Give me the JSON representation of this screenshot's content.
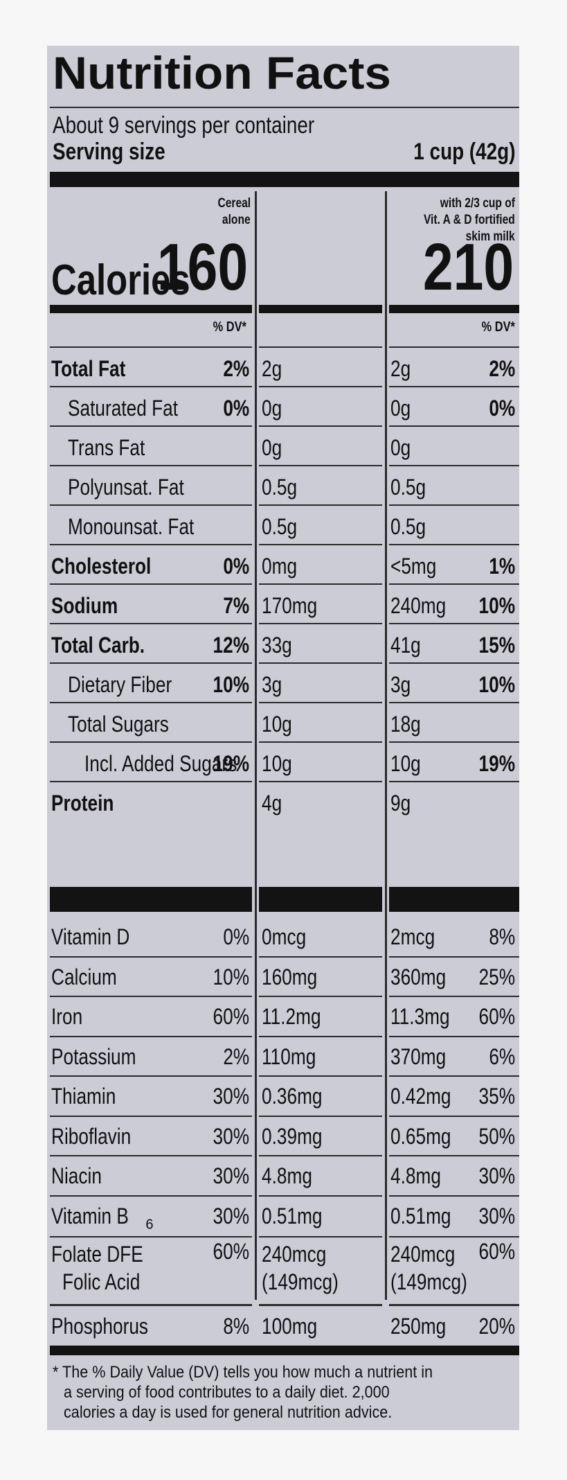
{
  "title": "Nutrition Facts",
  "servings": "About 9 servings per container",
  "serving_size_label": "Serving size",
  "serving_size_value": "1 cup (42g)",
  "col_cereal_header": [
    "Cereal",
    "alone"
  ],
  "col_milk_header": [
    "with 2/3 cup of",
    "Vit. A & D fortified",
    "skim milk"
  ],
  "calories_label": "Calories",
  "calories_cereal": "160",
  "calories_milk": "210",
  "dv_header": "% DV*",
  "nutrients": [
    {
      "label": "Total Fat",
      "bold": true,
      "indent": 0,
      "c_amt": "2g",
      "c_dv": "2%",
      "m_amt": "2g",
      "m_dv": "2%"
    },
    {
      "label": "Saturated Fat",
      "bold": false,
      "indent": 1,
      "c_amt": "0g",
      "c_dv": "0%",
      "m_amt": "0g",
      "m_dv": "0%"
    },
    {
      "label": "Trans Fat",
      "bold": false,
      "indent": 1,
      "c_amt": "0g",
      "c_dv": "",
      "m_amt": "0g",
      "m_dv": ""
    },
    {
      "label": "Polyunsat. Fat",
      "bold": false,
      "indent": 1,
      "c_amt": "0.5g",
      "c_dv": "",
      "m_amt": "0.5g",
      "m_dv": ""
    },
    {
      "label": "Monounsat. Fat",
      "bold": false,
      "indent": 1,
      "c_amt": "0.5g",
      "c_dv": "",
      "m_amt": "0.5g",
      "m_dv": ""
    },
    {
      "label": "Cholesterol",
      "bold": true,
      "indent": 0,
      "c_amt": "0mg",
      "c_dv": "0%",
      "m_amt": "<5mg",
      "m_dv": "1%"
    },
    {
      "label": "Sodium",
      "bold": true,
      "indent": 0,
      "c_amt": "170mg",
      "c_dv": "7%",
      "m_amt": "240mg",
      "m_dv": "10%"
    },
    {
      "label": "Total Carb.",
      "bold": true,
      "indent": 0,
      "c_amt": "33g",
      "c_dv": "12%",
      "m_amt": "41g",
      "m_dv": "15%"
    },
    {
      "label": "Dietary Fiber",
      "bold": false,
      "indent": 1,
      "c_amt": "3g",
      "c_dv": "10%",
      "m_amt": "3g",
      "m_dv": "10%"
    },
    {
      "label": "Total Sugars",
      "bold": false,
      "indent": 1,
      "c_amt": "10g",
      "c_dv": "",
      "m_amt": "18g",
      "m_dv": ""
    },
    {
      "label": "Incl. Added Sugars",
      "bold": false,
      "indent": 2,
      "c_amt": "10g",
      "c_dv": "19%",
      "m_amt": "10g",
      "m_dv": "19%"
    },
    {
      "label": "Protein",
      "bold": true,
      "indent": 0,
      "c_amt": "4g",
      "c_dv": "",
      "m_amt": "9g",
      "m_dv": ""
    }
  ],
  "vitamins": [
    {
      "label": "Vitamin D",
      "c_amt": "0mcg",
      "c_dv": "0%",
      "m_amt": "2mcg",
      "m_dv": "8%"
    },
    {
      "label": "Calcium",
      "c_amt": "160mg",
      "c_dv": "10%",
      "m_amt": "360mg",
      "m_dv": "25%"
    },
    {
      "label": "Iron",
      "c_amt": "11.2mg",
      "c_dv": "60%",
      "m_amt": "11.3mg",
      "m_dv": "60%"
    },
    {
      "label": "Potassium",
      "c_amt": "110mg",
      "c_dv": "2%",
      "m_amt": "370mg",
      "m_dv": "6%"
    },
    {
      "label": "Thiamin",
      "c_amt": "0.36mg",
      "c_dv": "30%",
      "m_amt": "0.42mg",
      "m_dv": "35%"
    },
    {
      "label": "Riboflavin",
      "c_amt": "0.39mg",
      "c_dv": "30%",
      "m_amt": "0.65mg",
      "m_dv": "50%"
    },
    {
      "label": "Niacin",
      "c_amt": "4.8mg",
      "c_dv": "30%",
      "m_amt": "4.8mg",
      "m_dv": "30%"
    },
    {
      "label": "Vitamin B",
      "sub": "6",
      "c_amt": "0.51mg",
      "c_dv": "30%",
      "m_amt": "0.51mg",
      "m_dv": "30%"
    }
  ],
  "folate": {
    "label": "Folate DFE",
    "label2": "Folic Acid",
    "c_amt": "240mcg",
    "c_amt2": "(149mcg)",
    "c_dv": "60%",
    "m_amt": "240mcg",
    "m_amt2": "(149mcg)",
    "m_dv": "60%"
  },
  "phosphorus": {
    "label": "Phosphorus",
    "c_amt": "100mg",
    "c_dv": "8%",
    "m_amt": "250mg",
    "m_dv": "20%"
  },
  "footnote": [
    "* The % Daily Value (DV) tells you how much a nutrient in",
    "a serving of food contributes to a daily diet. 2,000",
    "calories a day is used for general nutrition advice."
  ]
}
